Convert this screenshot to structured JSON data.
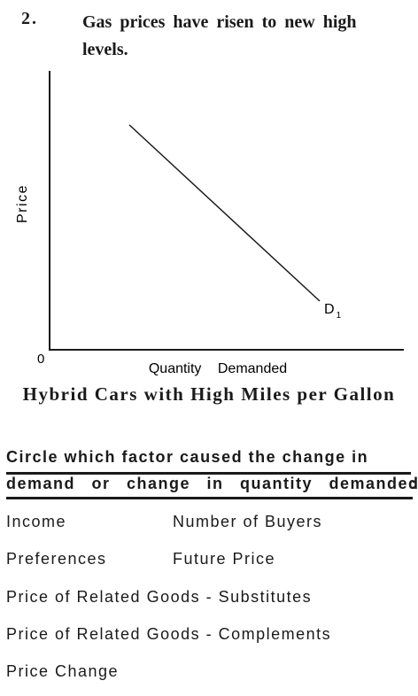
{
  "question": {
    "number": "2.",
    "text": "Gas prices have risen to new high levels."
  },
  "graph": {
    "y_axis_label": "Price",
    "x_axis_label": "Quantity Demanded",
    "origin_label": "0",
    "curve_label_main": "D",
    "curve_label_sub": "1",
    "caption": "Hybrid Cars with High Miles per Gallon"
  },
  "instruction": {
    "line1": "Circle which factor caused the change in",
    "line2": "demand or change in quantity demanded",
    "colon": ":"
  },
  "options": {
    "income": "Income",
    "number_of_buyers": "Number of Buyers",
    "preferences": "Preferences",
    "future_price": "Future Price",
    "substitutes": "Price of Related Goods - Substitutes",
    "complements": "Price of Related Goods - Complements",
    "price_change": "Price Change"
  }
}
